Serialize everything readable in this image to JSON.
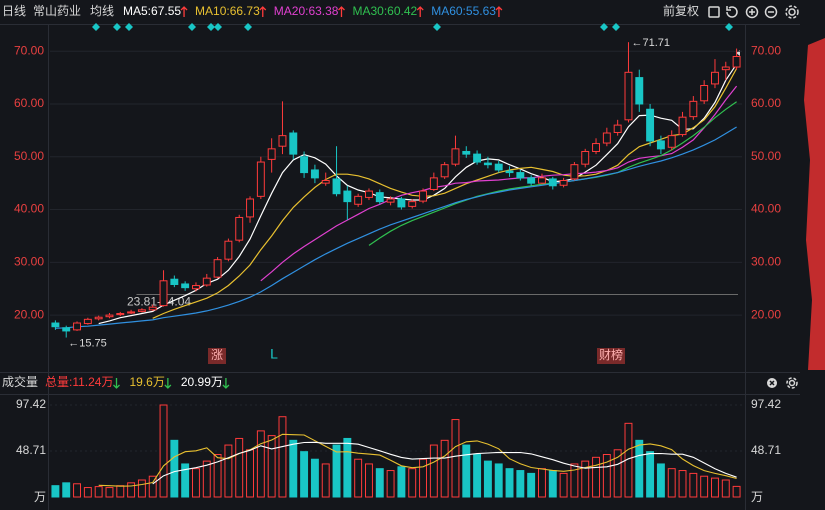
{
  "header": {
    "period": "日线",
    "name": "常山药业",
    "ma_title": "均线",
    "adjust": "前复权",
    "event_up": "涨",
    "event_l": "L",
    "event_report": "财榜"
  },
  "chart_data": [
    {
      "type": "candlestick",
      "ylim": [
        9.6,
        72.5
      ],
      "yticks": [
        {
          "value": 20,
          "label": "20.00"
        },
        {
          "value": 30,
          "label": "30.00"
        },
        {
          "value": 40,
          "label": "40.00"
        },
        {
          "value": 50,
          "label": "50.00"
        },
        {
          "value": 60,
          "label": "60.00"
        },
        {
          "value": 70,
          "label": "70.00"
        }
      ],
      "grid": true,
      "up_color": "#ff3b3b",
      "down_color": "#19c6c6",
      "open": [
        18.5,
        17.6,
        17.2,
        18.4,
        19.3,
        19.7,
        20.1,
        20.4,
        20.7,
        21.0,
        21.8,
        26.8,
        25.9,
        25.0,
        25.7,
        27.2,
        30.6,
        34.2,
        38.6,
        42.5,
        49.5,
        52.0,
        54.5,
        50.0,
        47.5,
        45.0,
        45.8,
        43.5,
        41.0,
        42.3,
        43.2,
        41.4,
        42.0,
        40.6,
        41.6,
        43.8,
        46.2,
        48.6,
        51.0,
        50.5,
        48.8,
        48.6,
        47.3,
        47.0,
        46.0,
        45.0,
        45.8,
        44.6,
        45.8,
        48.6,
        51.0,
        52.6,
        54.6,
        57.0,
        65.0,
        59.0,
        53.0,
        51.8,
        54.2,
        57.6,
        60.6,
        63.8,
        66.5,
        67.0
      ],
      "high": [
        19.0,
        18.0,
        18.8,
        19.5,
        19.9,
        20.4,
        20.6,
        21.0,
        21.3,
        22.0,
        28.5,
        27.5,
        26.4,
        26.2,
        27.8,
        31.0,
        34.5,
        39.0,
        42.5,
        50.0,
        53.5,
        60.5,
        55.0,
        51.0,
        48.5,
        47.0,
        52.0,
        44.5,
        43.0,
        44.0,
        43.8,
        42.5,
        42.4,
        42.0,
        44.0,
        47.0,
        49.0,
        54.0,
        52.0,
        51.2,
        50.0,
        49.2,
        48.2,
        47.5,
        46.5,
        46.8,
        46.2,
        46.0,
        49.0,
        51.5,
        53.5,
        55.5,
        57.0,
        71.71,
        66.5,
        60.0,
        54.0,
        55.0,
        58.5,
        61.5,
        64.5,
        68.5,
        68.0,
        70.5
      ],
      "low": [
        17.2,
        15.75,
        17.0,
        18.2,
        19.0,
        19.4,
        19.8,
        20.2,
        20.5,
        20.8,
        21.6,
        25.3,
        24.6,
        24.5,
        25.4,
        27.0,
        30.2,
        33.8,
        37.5,
        42.0,
        47.0,
        50.5,
        49.5,
        46.0,
        45.0,
        44.5,
        42.5,
        38.0,
        40.5,
        41.8,
        41.0,
        40.8,
        40.0,
        40.2,
        41.2,
        43.5,
        45.8,
        48.2,
        49.8,
        48.5,
        47.8,
        47.0,
        46.2,
        45.5,
        44.5,
        44.8,
        43.8,
        44.2,
        45.5,
        48.0,
        50.5,
        52.0,
        54.0,
        56.5,
        58.5,
        52.0,
        50.5,
        51.2,
        53.8,
        57.0,
        60.0,
        63.0,
        64.5,
        66.5
      ],
      "close": [
        17.8,
        17.0,
        18.5,
        19.2,
        19.6,
        20.0,
        20.3,
        20.6,
        21.0,
        21.5,
        26.5,
        25.8,
        25.2,
        25.6,
        27.0,
        30.5,
        34.0,
        38.5,
        42.0,
        49.0,
        51.5,
        54.0,
        50.5,
        47.0,
        46.0,
        45.5,
        43.0,
        41.5,
        42.5,
        43.5,
        41.5,
        42.0,
        40.5,
        41.5,
        43.5,
        46.0,
        48.5,
        51.5,
        50.5,
        49.0,
        48.5,
        47.5,
        47.0,
        46.0,
        45.0,
        46.0,
        44.5,
        45.5,
        48.5,
        51.0,
        52.5,
        54.5,
        56.0,
        66.0,
        60.0,
        53.0,
        51.5,
        54.0,
        57.5,
        60.5,
        63.5,
        66.0,
        67.0,
        69.0
      ],
      "series": [
        {
          "name": "MA5:",
          "value": 67.55,
          "color": "#ffffff",
          "values": [
            null,
            null,
            null,
            null,
            18.4,
            18.9,
            19.5,
            19.9,
            20.3,
            20.7,
            21.9,
            22.8,
            23.7,
            24.7,
            26.0,
            26.8,
            28.5,
            31.1,
            34.4,
            38.8,
            43.1,
            47.0,
            49.4,
            50.4,
            49.8,
            48.6,
            46.4,
            44.6,
            43.7,
            43.2,
            42.4,
            42.2,
            42.0,
            41.8,
            41.8,
            42.7,
            44.0,
            46.2,
            48.0,
            49.2,
            49.6,
            49.4,
            48.5,
            47.7,
            46.8,
            46.1,
            45.3,
            45.4,
            45.9,
            47.1,
            48.4,
            50.4,
            52.5,
            55.7,
            57.8,
            57.9,
            57.3,
            56.9,
            55.2,
            55.3,
            57.3,
            60.3,
            64.5,
            67.55
          ]
        },
        {
          "name": "MA10:",
          "value": 66.73,
          "color": "#e8c030",
          "values": [
            null,
            null,
            null,
            null,
            null,
            null,
            null,
            null,
            null,
            19.4,
            20.3,
            21.1,
            21.8,
            22.5,
            23.2,
            24.2,
            25.6,
            27.4,
            29.5,
            32.4,
            35.0,
            37.9,
            40.4,
            42.4,
            44.2,
            45.7,
            46.7,
            46.7,
            46.4,
            45.8,
            44.9,
            44.0,
            43.3,
            42.7,
            42.5,
            42.6,
            43.1,
            44.0,
            44.9,
            45.6,
            46.3,
            47.0,
            47.5,
            47.8,
            48.0,
            47.6,
            47.2,
            46.5,
            46.3,
            46.4,
            46.7,
            47.4,
            48.4,
            50.4,
            51.9,
            52.6,
            53.3,
            54.0,
            54.3,
            55.5,
            57.0,
            59.5,
            63.0,
            66.73
          ]
        },
        {
          "name": "MA20:",
          "value": 63.38,
          "color": "#e040d0",
          "values": [
            null,
            null,
            null,
            null,
            null,
            null,
            null,
            null,
            null,
            null,
            null,
            null,
            null,
            null,
            null,
            null,
            null,
            null,
            null,
            26.5,
            28.2,
            30.0,
            31.6,
            33.0,
            34.3,
            35.6,
            36.9,
            38.0,
            39.1,
            40.2,
            41.0,
            41.9,
            42.7,
            43.2,
            43.6,
            44.2,
            44.5,
            45.0,
            45.1,
            45.4,
            45.5,
            45.6,
            45.8,
            46.0,
            46.0,
            46.3,
            46.5,
            46.6,
            46.8,
            46.9,
            47.1,
            47.4,
            47.9,
            49.0,
            49.7,
            50.0,
            50.2,
            50.6,
            51.8,
            53.2,
            55.5,
            58.0,
            60.8,
            63.38
          ]
        },
        {
          "name": "MA30:",
          "value": 60.42,
          "color": "#30c050",
          "values": [
            null,
            null,
            null,
            null,
            null,
            null,
            null,
            null,
            null,
            null,
            null,
            null,
            null,
            null,
            null,
            null,
            null,
            null,
            null,
            null,
            null,
            null,
            null,
            null,
            null,
            null,
            null,
            null,
            null,
            33.2,
            34.6,
            35.9,
            37.0,
            37.9,
            38.7,
            39.5,
            40.3,
            41.1,
            41.8,
            42.5,
            43.0,
            43.5,
            43.9,
            44.2,
            44.5,
            44.8,
            45.0,
            45.2,
            45.5,
            45.8,
            46.1,
            46.5,
            47.0,
            48.0,
            48.8,
            49.5,
            50.2,
            51.3,
            52.6,
            54.0,
            55.6,
            57.4,
            59.0,
            60.42
          ]
        },
        {
          "name": "MA60:",
          "value": 55.63,
          "color": "#3090e0",
          "values": [
            17.5,
            17.6,
            17.8,
            17.9,
            18.1,
            18.3,
            18.5,
            18.7,
            18.9,
            19.1,
            19.5,
            19.8,
            20.1,
            20.4,
            20.8,
            21.3,
            21.9,
            22.6,
            23.4,
            24.4,
            25.6,
            26.9,
            28.1,
            29.3,
            30.5,
            31.6,
            32.6,
            33.6,
            34.5,
            35.4,
            36.3,
            37.1,
            37.8,
            38.5,
            39.2,
            39.9,
            40.6,
            41.3,
            41.9,
            42.4,
            42.9,
            43.3,
            43.7,
            44.0,
            44.3,
            44.6,
            44.9,
            45.2,
            45.5,
            45.8,
            46.2,
            46.6,
            47.0,
            47.6,
            48.2,
            48.7,
            49.2,
            49.8,
            50.5,
            51.3,
            52.2,
            53.2,
            54.4,
            55.63
          ]
        }
      ],
      "max_label": "←71.71",
      "min_label": "←15.75",
      "range_line": {
        "label": "23.81-24.04",
        "value": 23.9
      }
    },
    {
      "type": "volume",
      "title": "成交量",
      "unit_label": "万",
      "ylim": [
        0,
        108
      ],
      "yticks": [
        48.71,
        97.42
      ],
      "values": [
        12,
        15,
        14,
        10,
        11,
        10,
        12,
        15,
        18,
        22,
        97.4,
        60,
        35,
        30,
        38,
        45,
        55,
        62,
        50,
        70,
        65,
        85,
        60,
        48,
        40,
        35,
        55,
        62,
        40,
        35,
        30,
        28,
        32,
        30,
        40,
        55,
        60,
        82,
        55,
        45,
        38,
        35,
        30,
        28,
        25,
        30,
        28,
        25,
        35,
        38,
        42,
        45,
        50,
        78,
        60,
        48,
        35,
        30,
        28,
        25,
        22,
        20,
        18,
        11.24
      ],
      "total": {
        "label": "总量:",
        "value": 11.24,
        "unit": "万",
        "color": "#ff3b3b"
      },
      "series": [
        {
          "name": "MA5:",
          "value": 19.6,
          "unit": "万",
          "color": "#e8c030",
          "values": [
            null,
            null,
            null,
            null,
            12.4,
            12.0,
            11.4,
            11.6,
            13.2,
            15.4,
            32.9,
            42.5,
            48.0,
            48.9,
            52.1,
            41.6,
            40.6,
            46.0,
            50.0,
            56.4,
            60.4,
            66.4,
            66.0,
            65.6,
            59.6,
            53.6,
            47.6,
            48.0,
            46.4,
            45.4,
            44.4,
            39.0,
            33.0,
            31.0,
            32.0,
            37.0,
            43.4,
            53.4,
            58.4,
            59.4,
            56.0,
            51.0,
            40.6,
            35.2,
            31.2,
            29.6,
            28.2,
            27.2,
            28.6,
            31.2,
            33.6,
            37.0,
            42.0,
            50.6,
            55.0,
            56.2,
            54.2,
            50.2,
            40.2,
            33.2,
            28.0,
            25.0,
            22.6,
            19.6
          ]
        },
        {
          "name": "MA10:",
          "value": 20.99,
          "unit": "万",
          "color": "#ffffff",
          "values": [
            null,
            null,
            null,
            null,
            null,
            null,
            null,
            null,
            null,
            13.9,
            22.4,
            26.9,
            29.0,
            31.0,
            33.7,
            37.2,
            41.5,
            46.2,
            49.4,
            54.2,
            50.9,
            53.4,
            55.9,
            57.7,
            57.9,
            56.9,
            56.9,
            56.9,
            55.9,
            52.4,
            48.9,
            45.2,
            41.9,
            40.1,
            40.7,
            41.2,
            41.2,
            43.2,
            44.7,
            45.9,
            46.6,
            47.2,
            47.0,
            47.1,
            45.6,
            42.6,
            39.5,
            35.8,
            32.8,
            30.5,
            31.3,
            32.0,
            34.6,
            40.5,
            44.0,
            45.9,
            46.1,
            45.3,
            45.3,
            42.0,
            36.0,
            30.0,
            25.0,
            20.99
          ]
        }
      ]
    }
  ]
}
